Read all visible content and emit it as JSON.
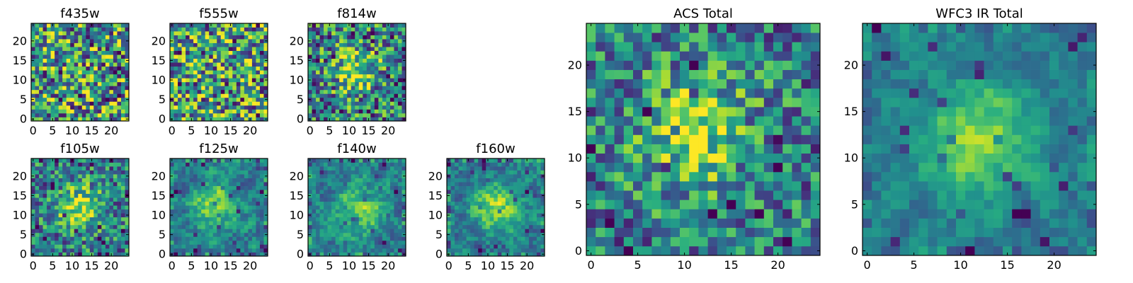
{
  "chart_data": [
    {
      "type": "heatmap",
      "title": "f435w",
      "colormap": "viridis",
      "grid": false,
      "xlim": [
        -0.5,
        24.5
      ],
      "ylim": [
        -0.5,
        24.5
      ],
      "xticks": [
        0,
        5,
        10,
        15,
        20
      ],
      "yticks": [
        0,
        5,
        10,
        15,
        20
      ],
      "xlabel": "",
      "ylabel": "",
      "size": 25,
      "peak": null,
      "noise": 0.5
    },
    {
      "type": "heatmap",
      "title": "f555w",
      "colormap": "viridis",
      "grid": false,
      "xlim": [
        -0.5,
        24.5
      ],
      "ylim": [
        -0.5,
        24.5
      ],
      "xticks": [
        0,
        5,
        10,
        15,
        20
      ],
      "yticks": [
        0,
        5,
        10,
        15,
        20
      ],
      "xlabel": "",
      "ylabel": "",
      "size": 25,
      "peak": null,
      "noise": 0.5
    },
    {
      "type": "heatmap",
      "title": "f814w",
      "colormap": "viridis",
      "grid": false,
      "xlim": [
        -0.5,
        24.5
      ],
      "ylim": [
        -0.5,
        24.5
      ],
      "xticks": [
        0,
        5,
        10,
        15,
        20
      ],
      "yticks": [
        0,
        5,
        10,
        15,
        20
      ],
      "xlabel": "",
      "ylabel": "",
      "size": 25,
      "peak": [
        12,
        12
      ],
      "noise": 0.45
    },
    {
      "type": "heatmap",
      "title": "f105w",
      "colormap": "viridis",
      "grid": false,
      "xlim": [
        -0.5,
        24.5
      ],
      "ylim": [
        -0.5,
        24.5
      ],
      "xticks": [
        0,
        5,
        10,
        15,
        20
      ],
      "yticks": [
        0,
        5,
        10,
        15,
        20
      ],
      "xlabel": "",
      "ylabel": "",
      "size": 25,
      "peak": [
        12,
        12
      ],
      "noise": 0.35
    },
    {
      "type": "heatmap",
      "title": "f125w",
      "colormap": "viridis",
      "grid": false,
      "xlim": [
        -0.5,
        24.5
      ],
      "ylim": [
        -0.5,
        24.5
      ],
      "xticks": [
        0,
        5,
        10,
        15,
        20
      ],
      "yticks": [
        0,
        5,
        10,
        15,
        20
      ],
      "xlabel": "",
      "ylabel": "",
      "size": 25,
      "peak": [
        11,
        13
      ],
      "noise": 0.3
    },
    {
      "type": "heatmap",
      "title": "f140w",
      "colormap": "viridis",
      "grid": false,
      "xlim": [
        -0.5,
        24.5
      ],
      "ylim": [
        -0.5,
        24.5
      ],
      "xticks": [
        0,
        5,
        10,
        15,
        20
      ],
      "yticks": [
        0,
        5,
        10,
        15,
        20
      ],
      "xlabel": "",
      "ylabel": "",
      "size": 25,
      "peak": [
        13,
        11
      ],
      "noise": 0.3
    },
    {
      "type": "heatmap",
      "title": "f160w",
      "colormap": "viridis",
      "grid": false,
      "xlim": [
        -0.5,
        24.5
      ],
      "ylim": [
        -0.5,
        24.5
      ],
      "xticks": [
        0,
        5,
        10,
        15,
        20
      ],
      "yticks": [
        0,
        5,
        10,
        15,
        20
      ],
      "xlabel": "",
      "ylabel": "",
      "size": 25,
      "peak": [
        12,
        12
      ],
      "noise": 0.3
    },
    {
      "type": "heatmap",
      "title": "ACS Total",
      "colormap": "viridis",
      "grid": false,
      "xlim": [
        -0.5,
        24.5
      ],
      "ylim": [
        -0.5,
        24.5
      ],
      "xticks": [
        0,
        5,
        10,
        15,
        20
      ],
      "yticks": [
        0,
        5,
        10,
        15,
        20
      ],
      "xlabel": "",
      "ylabel": "",
      "size": 25,
      "peak": [
        11,
        13
      ],
      "noise": 0.35
    },
    {
      "type": "heatmap",
      "title": "WFC3 IR Total",
      "colormap": "viridis",
      "grid": false,
      "xlim": [
        -0.5,
        24.5
      ],
      "ylim": [
        -0.5,
        24.5
      ],
      "xticks": [
        0,
        5,
        10,
        15,
        20
      ],
      "yticks": [
        0,
        5,
        10,
        15,
        20
      ],
      "xlabel": "",
      "ylabel": "",
      "size": 25,
      "peak": [
        12,
        12
      ],
      "noise": 0.2
    }
  ]
}
